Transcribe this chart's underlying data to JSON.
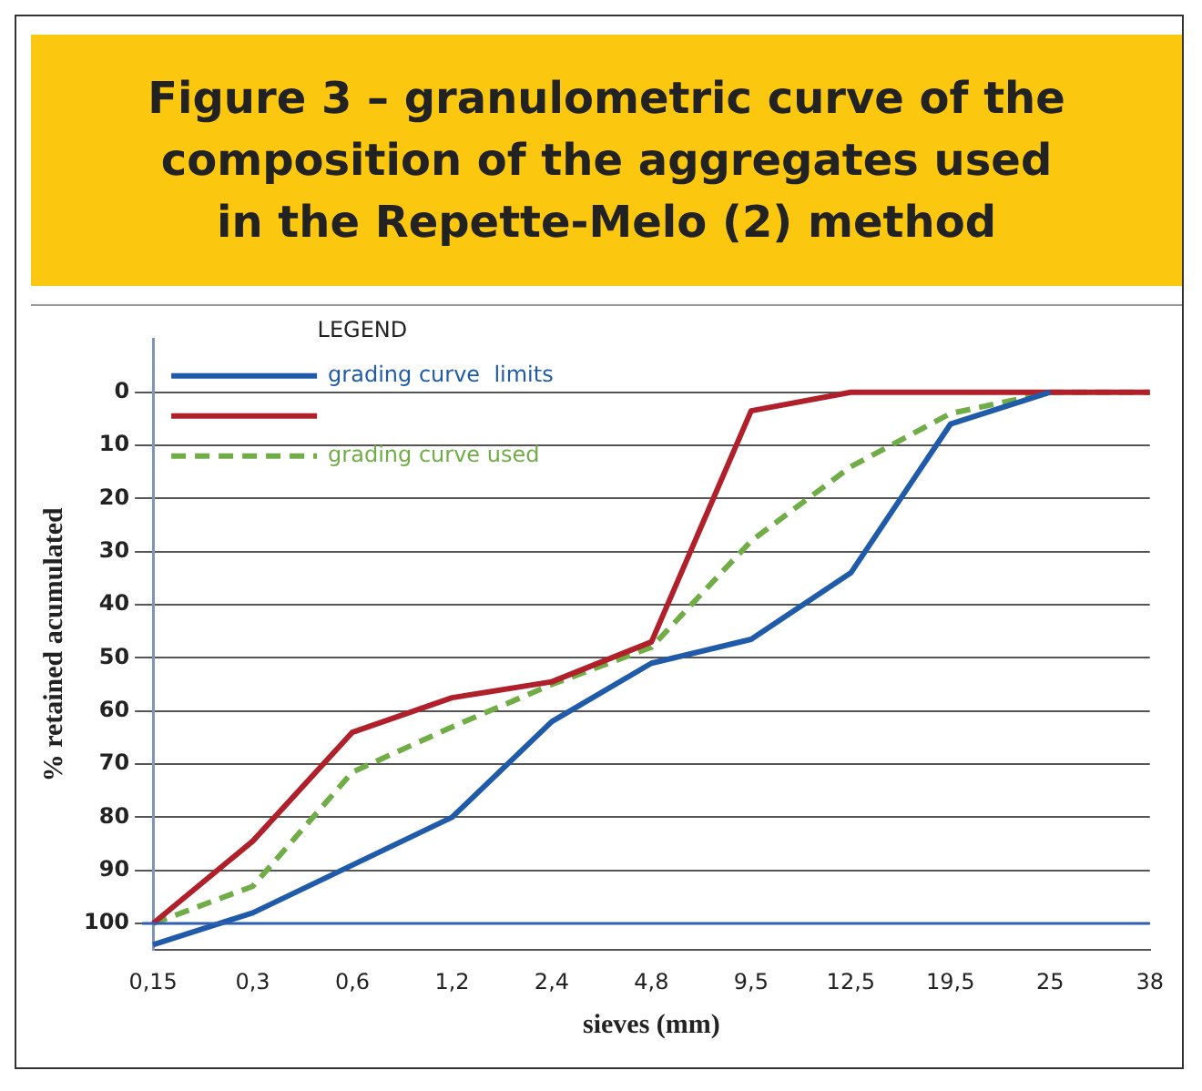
{
  "chart_data": {
    "type": "line",
    "title": "Figure 3 – granulometric curve of the composition of the aggregates used in the Repette-Melo (2) method",
    "xlabel": "sieves (mm)",
    "ylabel": "% retained acumulated",
    "legend_title": "LEGEND",
    "categories": [
      "0,15",
      "0,3",
      "0,6",
      "1,2",
      "2,4",
      "4,8",
      "9,5",
      "12,5",
      "19,5",
      "25",
      "38"
    ],
    "series": [
      {
        "name": "grading curve  limits",
        "color": "#1f5ba8",
        "values": [
          104,
          98,
          89,
          80,
          62,
          51,
          46.5,
          34,
          6,
          0,
          null
        ]
      },
      {
        "color": "#b0202a",
        "values": [
          100,
          84.5,
          64,
          57.5,
          54.5,
          47,
          3.5,
          0,
          0,
          0,
          0
        ]
      },
      {
        "name": "grading curve used",
        "color": "#70ad47",
        "line_style": "dashed",
        "values": [
          100,
          93,
          71.5,
          63,
          55,
          48,
          28,
          14,
          4,
          0,
          0
        ]
      }
    ],
    "ylim": [
      105,
      -10
    ],
    "yticks": [
      0,
      10,
      20,
      30,
      40,
      50,
      60,
      70,
      80,
      90,
      100
    ],
    "ref_lines": [
      {
        "axis": "y",
        "value": 100,
        "color": "#2e5fb0"
      }
    ],
    "grid": "y",
    "legend": "top left",
    "marker": "none"
  }
}
